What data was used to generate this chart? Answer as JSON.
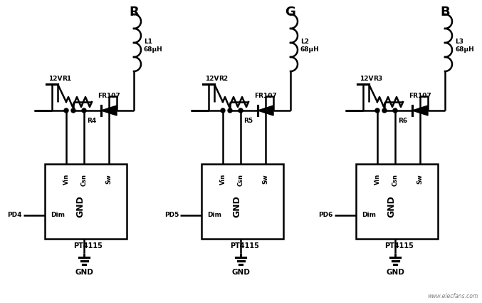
{
  "bg_color": "#ffffff",
  "line_color": "#000000",
  "text_color": "#000000",
  "fig_width": 6.77,
  "fig_height": 4.25,
  "dpi": 100,
  "circuits": [
    {
      "label": "R",
      "pd_label": "PD4",
      "r_label": "R1",
      "r2_label": "R4",
      "l_label": "L1"
    },
    {
      "label": "G",
      "pd_label": "PD5",
      "r_label": "R2",
      "r2_label": "R5",
      "l_label": "L2"
    },
    {
      "label": "B",
      "pd_label": "PD6",
      "r_label": "R3",
      "r2_label": "R6",
      "l_label": "L3"
    }
  ],
  "watermark": "www.elecfans.com"
}
